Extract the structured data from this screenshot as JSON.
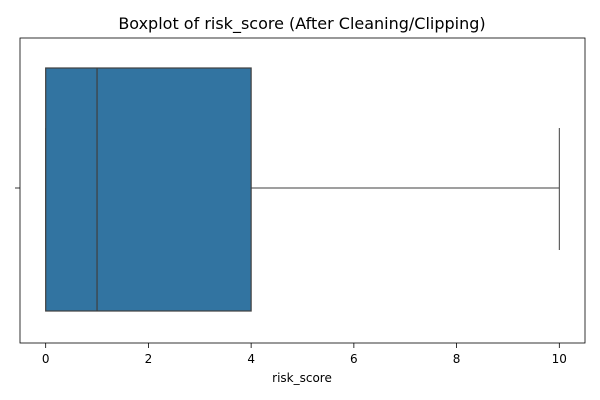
{
  "chart_data": {
    "type": "boxplot",
    "title": "Boxplot of risk_score (After Cleaning/Clipping)",
    "xlabel": "risk_score",
    "ylabel": "",
    "orientation": "horizontal",
    "xlim": [
      -0.5,
      10.5
    ],
    "xticks": [
      0,
      2,
      4,
      6,
      8,
      10
    ],
    "xtick_labels": [
      "0",
      "2",
      "4",
      "6",
      "8",
      "10"
    ],
    "grid": false,
    "series": [
      {
        "min": 0,
        "q1": 0,
        "median": 1,
        "q3": 4,
        "max": 10,
        "color": "#3274a1"
      }
    ]
  }
}
